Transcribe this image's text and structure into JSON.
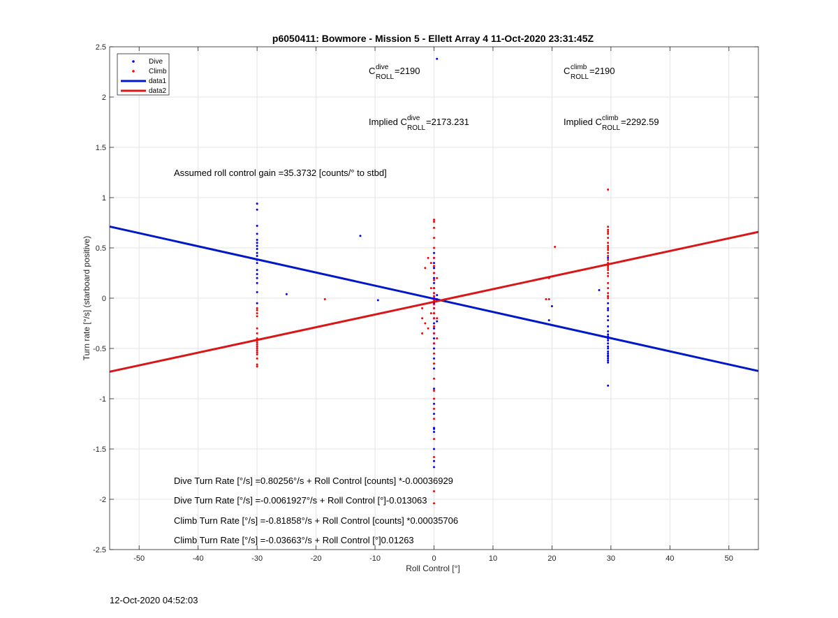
{
  "chart_data": {
    "type": "scatter",
    "title": "p6050411: Bowmore - Mission 5 - Ellett Array 4 11-Oct-2020 23:31:45Z",
    "xlabel": "Roll Control [°]",
    "ylabel": "Turn rate [°/s] (starboard positive)",
    "xlim": [
      -55,
      55
    ],
    "ylim": [
      -2.5,
      2.5
    ],
    "xticks": [
      "-50",
      "-40",
      "-30",
      "-20",
      "-10",
      "0",
      "10",
      "20",
      "30",
      "40",
      "50"
    ],
    "xtick_values": [
      -50,
      -40,
      -30,
      -20,
      -10,
      0,
      10,
      20,
      30,
      40,
      50
    ],
    "yticks": [
      "2.5",
      "2",
      "1.5",
      "1",
      "0.5",
      "0",
      "-0.5",
      "-1",
      "-1.5",
      "-2",
      "-2.5"
    ],
    "ytick_values": [
      2.5,
      2,
      1.5,
      1,
      0.5,
      0,
      -0.5,
      -1,
      -1.5,
      -2,
      -2.5
    ],
    "grid": true,
    "legend_placement": "top-left",
    "legend": [
      "Dive",
      "Climb",
      "data1",
      "data2"
    ],
    "colors": {
      "dive": "#0000ff",
      "climb": "#ff0000",
      "data1": "#0018c8",
      "data2": "#d81818"
    },
    "series": [
      {
        "name": "Dive",
        "kind": "points",
        "x": [
          -30,
          -30,
          -30,
          -30,
          -30,
          -30,
          -30,
          -30,
          -30,
          -30,
          -30,
          -30,
          -30,
          -30,
          -30,
          -30,
          -30,
          -30,
          -25,
          -12.5,
          -9.5,
          0.5,
          0,
          0,
          0,
          0,
          0,
          0,
          0,
          0,
          0,
          0,
          0,
          0,
          0,
          0,
          0,
          0,
          0,
          0,
          0,
          0,
          0,
          0,
          0,
          0,
          0,
          0,
          0,
          0,
          0,
          0,
          0,
          0,
          0,
          0,
          0.5,
          0.5,
          0.5,
          19.5,
          20,
          28,
          29.5,
          29.5,
          29.5,
          29.5,
          29.5,
          29.5,
          29.5,
          29.5,
          29.5,
          29.5,
          29.5,
          29.5,
          29.5,
          29.5,
          29.5,
          29.5,
          29.5,
          29.5,
          29.5,
          29.5,
          29.5,
          29.5,
          29.5,
          29.5
        ],
        "y": [
          0.94,
          0.88,
          0.72,
          0.64,
          0.58,
          0.55,
          0.52,
          0.49,
          0.45,
          0.42,
          0.38,
          0.35,
          0.28,
          0.24,
          0.2,
          0.15,
          0.06,
          -0.05,
          0.04,
          0.62,
          -0.02,
          2.38,
          0.45,
          0.4,
          0.35,
          0.3,
          0.25,
          0.2,
          0.15,
          0.1,
          0.05,
          0.0,
          -0.05,
          -0.1,
          -0.15,
          -0.2,
          -0.25,
          -0.3,
          -0.35,
          -0.4,
          -0.45,
          -0.5,
          -0.6,
          -0.7,
          -0.9,
          -1.05,
          -1.15,
          -1.3,
          -1.33,
          -1.5,
          -1.62,
          -1.68,
          0.3,
          -0.3,
          0.2,
          -1.29,
          0.03,
          -0.01,
          -0.23,
          -0.22,
          -0.08,
          0.08,
          0.02,
          -0.05,
          -0.12,
          -0.18,
          -0.22,
          -0.28,
          -0.33,
          -0.36,
          -0.38,
          -0.4,
          -0.42,
          -0.45,
          -0.48,
          -0.5,
          -0.53,
          -0.55,
          -0.57,
          -0.58,
          -0.6,
          -0.62,
          -0.64,
          -0.1,
          0.4,
          -0.87
        ]
      },
      {
        "name": "Climb",
        "kind": "points",
        "x": [
          -30,
          -30,
          -30,
          -30,
          -30,
          -30,
          -30,
          -30,
          -30,
          -30,
          -30,
          -30,
          -30,
          -30,
          -30,
          -30,
          -30,
          -30,
          -18.5,
          -2,
          -2,
          -2,
          -1.5,
          -1.5,
          -1,
          -1,
          -0.5,
          -0.5,
          -0.5,
          0,
          0,
          0,
          0,
          0,
          0,
          0,
          0,
          0,
          0,
          0,
          0,
          0,
          0,
          0,
          0,
          0,
          0,
          0,
          0,
          0,
          0,
          0,
          0,
          0,
          0,
          0,
          0,
          0,
          0,
          0,
          0.5,
          0.5,
          0.5,
          19,
          19.5,
          19.5,
          20.5,
          29.5,
          29.5,
          29.5,
          29.5,
          29.5,
          29.5,
          29.5,
          29.5,
          29.5,
          29.5,
          29.5,
          29.5,
          29.5,
          29.5,
          29.5,
          29.5,
          29.5,
          29.5,
          29.5,
          29.5,
          29.5,
          29.5,
          29.5,
          29.5
        ],
        "y": [
          -0.1,
          -0.12,
          -0.15,
          -0.18,
          -0.3,
          -0.35,
          -0.4,
          -0.42,
          -0.44,
          -0.46,
          -0.48,
          -0.5,
          -0.52,
          -0.54,
          -0.56,
          -0.6,
          -0.66,
          -0.68,
          -0.01,
          -0.1,
          -0.2,
          -0.35,
          0.3,
          -0.25,
          0.4,
          -0.3,
          0.35,
          0.1,
          -0.15,
          0.78,
          0.76,
          0.7,
          0.6,
          0.5,
          0.4,
          0.32,
          0.25,
          0.18,
          0.1,
          0.05,
          0.02,
          -0.02,
          -0.06,
          -0.1,
          -0.15,
          -0.2,
          -0.28,
          -0.35,
          -0.45,
          -0.55,
          -0.65,
          -0.8,
          -0.92,
          -1.0,
          -1.1,
          -1.2,
          -1.4,
          -1.58,
          -1.92,
          -2.04,
          0.2,
          -0.2,
          -0.4,
          -0.01,
          -0.01,
          0.2,
          0.51,
          1.08,
          0.71,
          0.68,
          0.66,
          0.64,
          0.6,
          0.55,
          0.52,
          0.5,
          0.48,
          0.45,
          0.42,
          0.38,
          0.35,
          0.32,
          0.3,
          0.28,
          0.25,
          0.22,
          0.15,
          0.1,
          0.05,
          0.02,
          0.0
        ]
      },
      {
        "name": "data1",
        "kind": "line",
        "x": [
          -55,
          55
        ],
        "y": [
          0.7122,
          -0.7246
        ]
      },
      {
        "name": "data2",
        "kind": "line",
        "x": [
          -55,
          55
        ],
        "y": [
          -0.7313,
          0.6587
        ]
      }
    ],
    "annotations": {
      "c_roll_dive": {
        "pre": "C",
        "sup": "dive",
        "sub": "ROLL",
        "post": " =2190"
      },
      "c_roll_climb": {
        "pre": "C",
        "sup": "climb",
        "sub": "ROLL",
        "post": " =2190"
      },
      "implied_dive": {
        "pre": "Implied C",
        "sup": "dive",
        "sub": "ROLL",
        "post": " =2173.231"
      },
      "implied_climb": {
        "pre": "Implied C",
        "sup": "climb",
        "sub": "ROLL",
        "post": " =2292.59"
      },
      "gain": "Assumed roll control gain =35.3732 [counts/° to stbd]",
      "eq1": "Dive Turn Rate [°/s] =0.80256°/s + Roll Control [counts] *-0.00036929",
      "eq2": "Dive Turn Rate [°/s] =-0.0061927°/s + Roll Control [°]-0.013063",
      "eq3": "Climb Turn Rate [°/s] =-0.81858°/s + Roll Control [counts] *0.00035706",
      "eq4": "Climb Turn Rate [°/s] =-0.03663°/s + Roll Control [°]0.01263"
    }
  },
  "footer": {
    "timestamp": "12-Oct-2020 04:52:03"
  }
}
